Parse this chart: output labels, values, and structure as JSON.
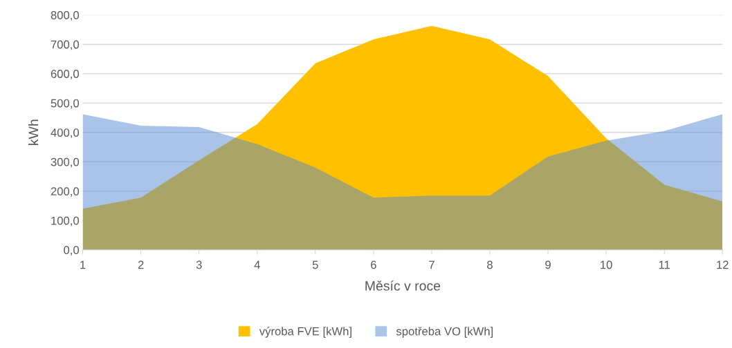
{
  "chart_data": {
    "type": "area",
    "xlabel": "Měsíc v roce",
    "ylabel": "kWh",
    "x": [
      1,
      2,
      3,
      4,
      5,
      6,
      7,
      8,
      9,
      10,
      11,
      12
    ],
    "series": [
      {
        "name": "výroba FVE [kWh]",
        "color": "#ffc000",
        "values": [
          140,
          178,
          305,
          428,
          635,
          717,
          763,
          717,
          592,
          380,
          222,
          165
        ]
      },
      {
        "name": "spotřeba VO [kWh]",
        "color": "#5389d1",
        "values": [
          462,
          423,
          418,
          360,
          280,
          178,
          185,
          185,
          318,
          372,
          405,
          462
        ]
      }
    ],
    "xlim": [
      1,
      12
    ],
    "xticks": [
      1,
      2,
      3,
      4,
      5,
      6,
      7,
      8,
      9,
      10,
      11,
      12
    ],
    "ylim": [
      0,
      800
    ],
    "yticks": [
      {
        "value": 0,
        "label": "0,0"
      },
      {
        "value": 100,
        "label": "100,0"
      },
      {
        "value": 200,
        "label": "200,0"
      },
      {
        "value": 300,
        "label": "300,0"
      },
      {
        "value": 400,
        "label": "400,0"
      },
      {
        "value": 500,
        "label": "500,0"
      },
      {
        "value": 600,
        "label": "600,0"
      },
      {
        "value": 700,
        "label": "700,0"
      },
      {
        "value": 800,
        "label": "800,0"
      }
    ],
    "grid": "y",
    "legend": "bottom"
  }
}
